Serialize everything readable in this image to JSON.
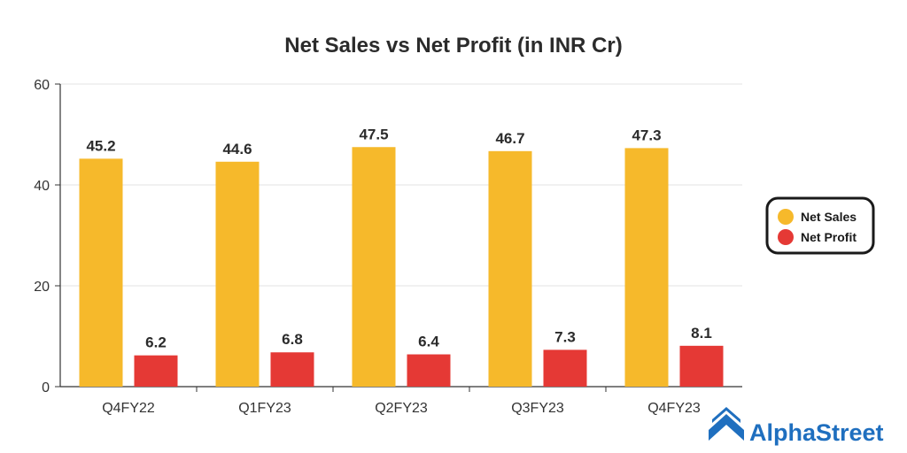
{
  "chart_data": {
    "type": "bar",
    "title": "Net Sales vs Net Profit (in INR Cr)",
    "categories": [
      "Q4FY22",
      "Q1FY23",
      "Q2FY23",
      "Q3FY23",
      "Q4FY23"
    ],
    "series": [
      {
        "name": "Net Sales",
        "values": [
          45.2,
          44.6,
          47.5,
          46.7,
          47.3
        ],
        "color": "#F6B92B"
      },
      {
        "name": "Net Profit",
        "values": [
          6.2,
          6.8,
          6.4,
          7.3,
          8.1
        ],
        "color": "#E53935"
      }
    ],
    "ylim": [
      0,
      60
    ],
    "yticks": [
      0,
      20,
      40,
      60
    ],
    "xlabel": "",
    "ylabel": "",
    "grid": true,
    "legend_position": "right"
  },
  "brand": {
    "name": "AlphaStreet",
    "color": "#1F6FBF"
  }
}
